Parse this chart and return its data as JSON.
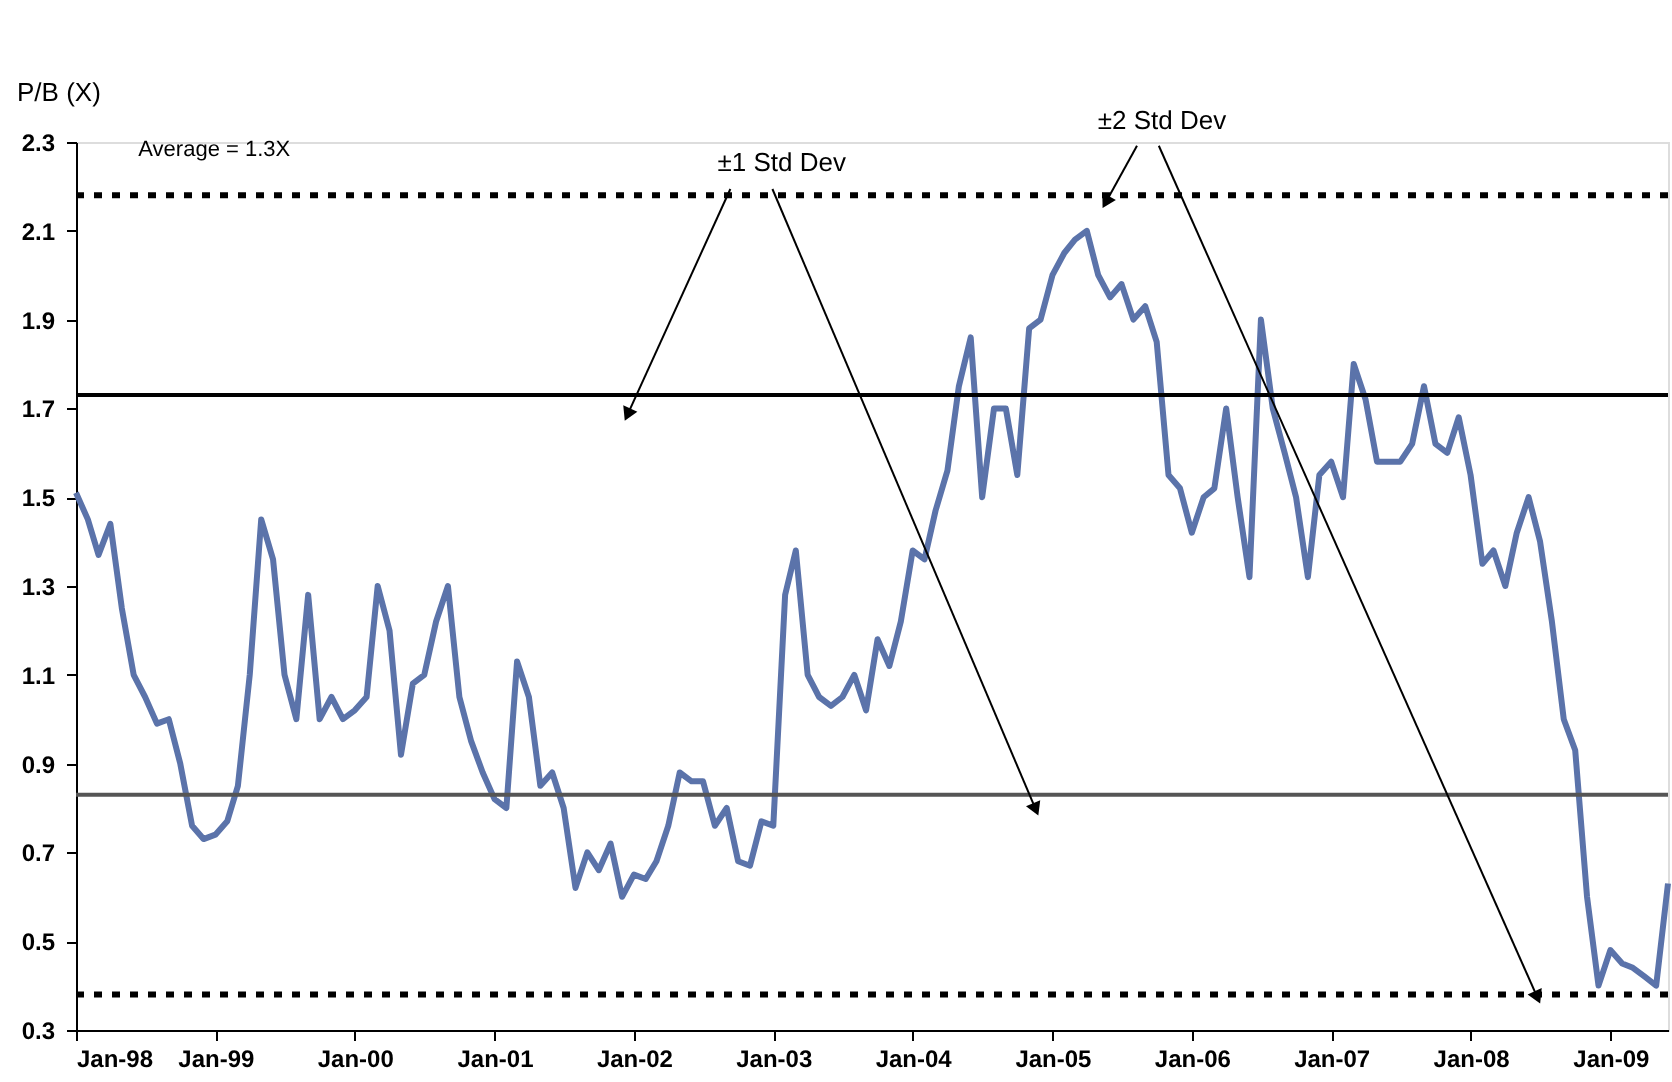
{
  "chart_data": {
    "type": "line",
    "ylabel": "P/B (X)",
    "x": [
      "1998-01",
      "1998-02",
      "1998-03",
      "1998-04",
      "1998-05",
      "1998-06",
      "1998-07",
      "1998-08",
      "1998-09",
      "1998-10",
      "1998-11",
      "1998-12",
      "1999-01",
      "1999-02",
      "1999-03",
      "1999-04",
      "1999-05",
      "1999-06",
      "1999-07",
      "1999-08",
      "1999-09",
      "1999-10",
      "1999-11",
      "1999-12",
      "2000-01",
      "2000-02",
      "2000-03",
      "2000-04",
      "2000-05",
      "2000-06",
      "2000-07",
      "2000-08",
      "2000-09",
      "2000-10",
      "2000-11",
      "2000-12",
      "2001-01",
      "2001-02",
      "2001-03",
      "2001-04",
      "2001-05",
      "2001-06",
      "2001-07",
      "2001-08",
      "2001-09",
      "2001-10",
      "2001-11",
      "2001-12",
      "2002-01",
      "2002-02",
      "2002-03",
      "2002-04",
      "2002-05",
      "2002-06",
      "2002-07",
      "2002-08",
      "2002-09",
      "2002-10",
      "2002-11",
      "2002-12",
      "2003-01",
      "2003-02",
      "2003-03",
      "2003-04",
      "2003-05",
      "2003-06",
      "2003-07",
      "2003-08",
      "2003-09",
      "2003-10",
      "2003-11",
      "2003-12",
      "2004-01",
      "2004-02",
      "2004-03",
      "2004-04",
      "2004-05",
      "2004-06",
      "2004-07",
      "2004-08",
      "2004-09",
      "2004-10",
      "2004-11",
      "2004-12",
      "2005-01",
      "2005-02",
      "2005-03",
      "2005-04",
      "2005-05",
      "2005-06",
      "2005-07",
      "2005-08",
      "2005-09",
      "2005-10",
      "2005-11",
      "2005-12",
      "2006-01",
      "2006-02",
      "2006-03",
      "2006-04",
      "2006-05",
      "2006-06",
      "2006-07",
      "2006-08",
      "2006-09",
      "2006-10",
      "2006-11",
      "2006-12",
      "2007-01",
      "2007-02",
      "2007-03",
      "2007-04",
      "2007-05",
      "2007-06",
      "2007-07",
      "2007-08",
      "2007-09",
      "2007-10",
      "2007-11",
      "2007-12",
      "2008-01",
      "2008-02",
      "2008-03",
      "2008-04",
      "2008-05",
      "2008-06",
      "2008-07",
      "2008-08",
      "2008-09",
      "2008-10",
      "2008-11",
      "2008-12",
      "2009-01",
      "2009-02",
      "2009-03",
      "2009-04",
      "2009-05",
      "2009-06"
    ],
    "series": [
      {
        "color": "#5b73aa",
        "values": [
          1.51,
          1.45,
          1.37,
          1.44,
          1.25,
          1.1,
          1.05,
          0.99,
          1.0,
          0.9,
          0.76,
          0.73,
          0.74,
          0.77,
          0.85,
          1.1,
          1.45,
          1.36,
          1.1,
          1.0,
          1.28,
          1.0,
          1.05,
          1.0,
          1.02,
          1.05,
          1.3,
          1.2,
          0.92,
          1.08,
          1.1,
          1.22,
          1.3,
          1.05,
          0.95,
          0.88,
          0.82,
          0.8,
          1.13,
          1.05,
          0.85,
          0.88,
          0.8,
          0.62,
          0.7,
          0.66,
          0.72,
          0.6,
          0.65,
          0.64,
          0.68,
          0.76,
          0.88,
          0.86,
          0.86,
          0.76,
          0.8,
          0.68,
          0.67,
          0.77,
          0.76,
          1.28,
          1.38,
          1.1,
          1.05,
          1.03,
          1.05,
          1.1,
          1.02,
          1.18,
          1.12,
          1.22,
          1.38,
          1.36,
          1.47,
          1.56,
          1.75,
          1.86,
          1.5,
          1.7,
          1.7,
          1.55,
          1.88,
          1.9,
          2.0,
          2.05,
          2.08,
          2.1,
          2.0,
          1.95,
          1.98,
          1.9,
          1.93,
          1.85,
          1.55,
          1.52,
          1.42,
          1.5,
          1.52,
          1.7,
          1.5,
          1.32,
          1.9,
          1.7,
          1.6,
          1.5,
          1.32,
          1.55,
          1.58,
          1.5,
          1.8,
          1.72,
          1.58,
          1.58,
          1.58,
          1.62,
          1.75,
          1.62,
          1.6,
          1.68,
          1.55,
          1.35,
          1.38,
          1.3,
          1.42,
          1.5,
          1.4,
          1.22,
          1.0,
          0.93,
          0.6,
          0.4,
          0.48,
          0.45,
          0.44,
          0.42,
          0.4,
          0.63
        ]
      }
    ],
    "xlim": [
      "1998-01",
      "2009-06"
    ],
    "xticks": [
      {
        "value": "1998-01",
        "label": "Jan-98"
      },
      {
        "value": "1999-01",
        "label": "Jan-99"
      },
      {
        "value": "2000-01",
        "label": "Jan-00"
      },
      {
        "value": "2001-01",
        "label": "Jan-01"
      },
      {
        "value": "2002-01",
        "label": "Jan-02"
      },
      {
        "value": "2003-01",
        "label": "Jan-03"
      },
      {
        "value": "2004-01",
        "label": "Jan-04"
      },
      {
        "value": "2005-01",
        "label": "Jan-05"
      },
      {
        "value": "2006-01",
        "label": "Jan-06"
      },
      {
        "value": "2007-01",
        "label": "Jan-07"
      },
      {
        "value": "2008-01",
        "label": "Jan-08"
      },
      {
        "value": "2009-01",
        "label": "Jan-09"
      }
    ],
    "ylim": [
      0.3,
      2.3
    ],
    "yticks": [
      0.3,
      0.5,
      0.7,
      0.9,
      1.1,
      1.3,
      1.5,
      1.7,
      1.9,
      2.1,
      2.3
    ],
    "ref_lines": [
      {
        "axis": "y",
        "value": 2.18,
        "label": null,
        "color": "#000000",
        "line_style": "dotted"
      },
      {
        "axis": "y",
        "value": 1.73,
        "label": null,
        "color": "#000000",
        "line_style": "solid"
      },
      {
        "axis": "y",
        "value": 0.83,
        "label": null,
        "color": "#555555",
        "line_style": "solid"
      },
      {
        "axis": "y",
        "value": 0.38,
        "label": null,
        "color": "#000000",
        "line_style": "dotted"
      }
    ],
    "annotations": [
      "Average = 1.3X",
      "±1 Std Dev",
      "±2 Std Dev"
    ],
    "grid": false,
    "marker": "none",
    "line_style": "solid"
  }
}
